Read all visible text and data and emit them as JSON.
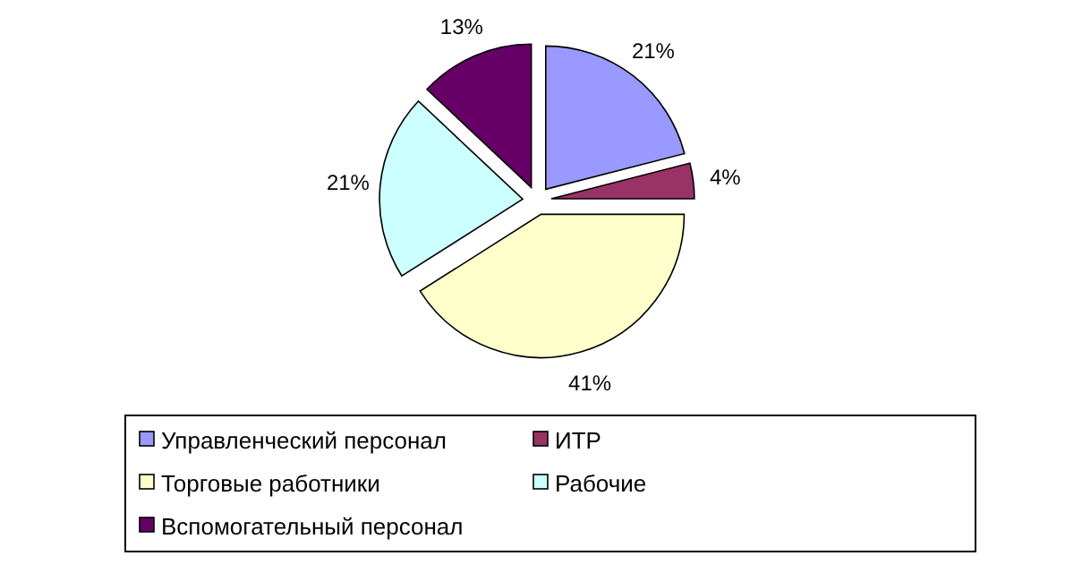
{
  "chart_data": {
    "type": "pie",
    "categories": [
      "Управленческий персонал",
      "ИТР",
      "Торговые работники",
      "Рабочие",
      "Вспомогательный персонал"
    ],
    "values": [
      21,
      4,
      41,
      21,
      13
    ],
    "colors": [
      "#9999ff",
      "#993366",
      "#ffffcc",
      "#ccffff",
      "#660066"
    ],
    "value_labels": [
      "21%",
      "4%",
      "41%",
      "21%",
      "13%"
    ],
    "legend": "bottom"
  }
}
